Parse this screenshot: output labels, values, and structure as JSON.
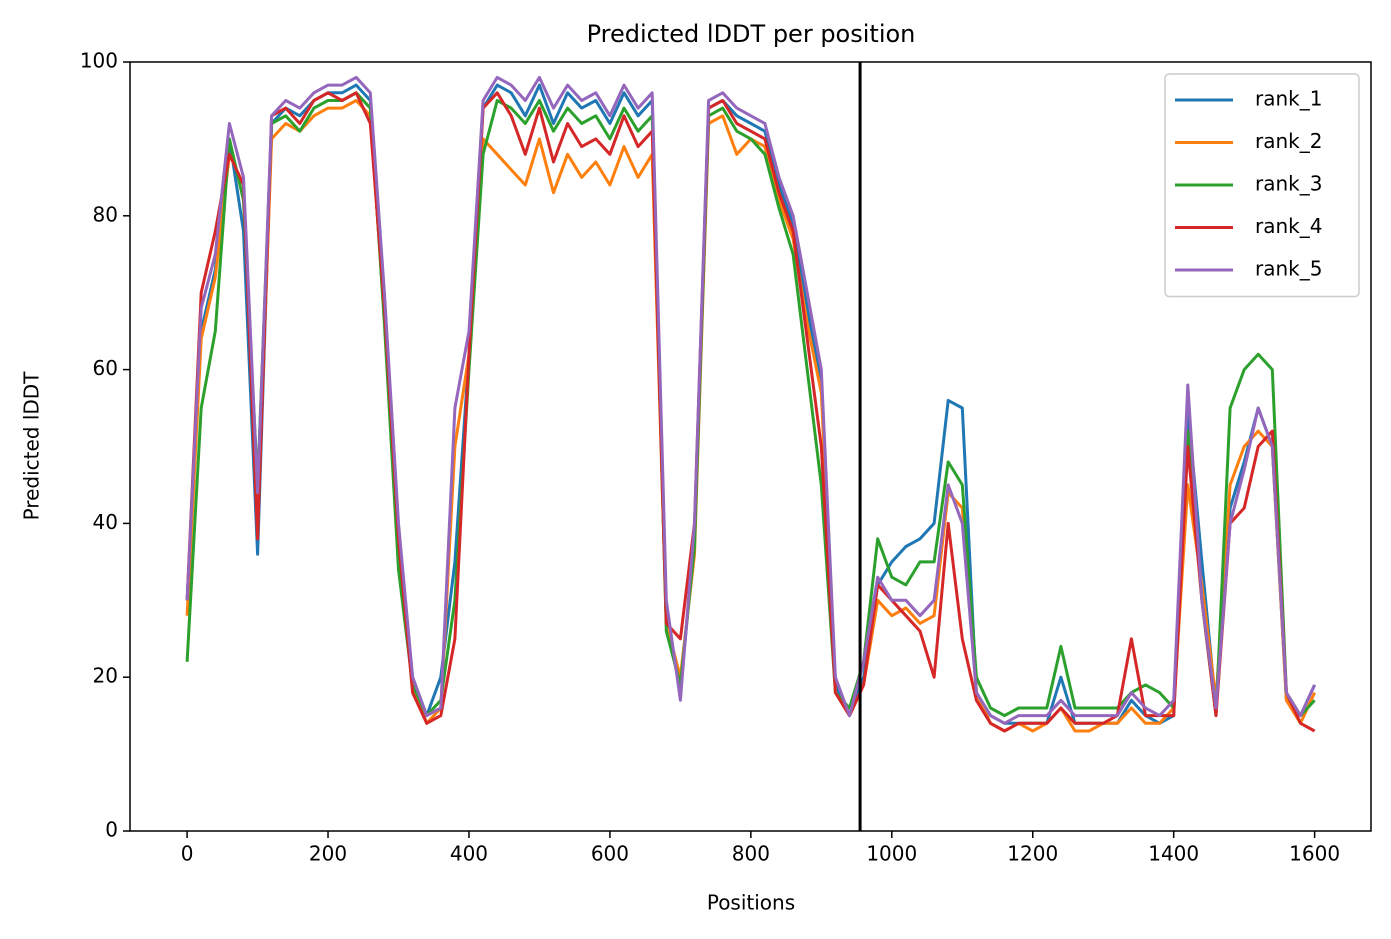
{
  "chart_data": {
    "type": "line",
    "title": "Predicted lDDT per position",
    "xlabel": "Positions",
    "ylabel": "Predicted lDDT",
    "x": [
      0,
      20,
      40,
      60,
      80,
      100,
      120,
      140,
      160,
      180,
      200,
      220,
      240,
      260,
      280,
      300,
      320,
      340,
      360,
      380,
      400,
      420,
      440,
      460,
      480,
      500,
      520,
      540,
      560,
      580,
      600,
      620,
      640,
      660,
      680,
      700,
      720,
      740,
      760,
      780,
      800,
      820,
      840,
      860,
      880,
      900,
      920,
      940,
      960,
      980,
      1000,
      1020,
      1040,
      1060,
      1080,
      1100,
      1120,
      1140,
      1160,
      1180,
      1200,
      1220,
      1240,
      1260,
      1280,
      1300,
      1320,
      1340,
      1360,
      1380,
      1400,
      1420,
      1440,
      1460,
      1480,
      1500,
      1520,
      1540,
      1560,
      1580,
      1600
    ],
    "series": [
      {
        "name": "rank_1",
        "color": "#1f77b4",
        "values": [
          30,
          65,
          73,
          90,
          78,
          36,
          92,
          94,
          93,
          95,
          96,
          96,
          97,
          95,
          68,
          38,
          20,
          15,
          20,
          35,
          62,
          94,
          97,
          96,
          93,
          97,
          92,
          96,
          94,
          95,
          92,
          96,
          93,
          95,
          28,
          18,
          38,
          94,
          95,
          93,
          92,
          91,
          84,
          79,
          68,
          58,
          19,
          15,
          20,
          32,
          35,
          37,
          38,
          40,
          56,
          55,
          18,
          15,
          14,
          14,
          14,
          14,
          20,
          14,
          14,
          14,
          14,
          17,
          15,
          14,
          15,
          55,
          35,
          16,
          42,
          48,
          55,
          50,
          17,
          15,
          19
        ]
      },
      {
        "name": "rank_2",
        "color": "#ff7f0e",
        "values": [
          28,
          64,
          72,
          88,
          84,
          40,
          90,
          92,
          91,
          93,
          94,
          94,
          95,
          93,
          67,
          37,
          19,
          14,
          16,
          50,
          62,
          90,
          88,
          86,
          84,
          90,
          83,
          88,
          85,
          87,
          84,
          89,
          85,
          88,
          27,
          20,
          36,
          92,
          93,
          88,
          90,
          89,
          82,
          77,
          66,
          57,
          18,
          15,
          19,
          30,
          28,
          29,
          27,
          28,
          44,
          42,
          18,
          14,
          13,
          14,
          13,
          14,
          16,
          13,
          13,
          14,
          14,
          16,
          14,
          14,
          16,
          45,
          32,
          17,
          45,
          50,
          52,
          50,
          17,
          14,
          18
        ]
      },
      {
        "name": "rank_3",
        "color": "#2ca02c",
        "values": [
          22,
          55,
          65,
          90,
          82,
          45,
          92,
          93,
          91,
          94,
          95,
          95,
          96,
          94,
          66,
          34,
          19,
          15,
          17,
          30,
          60,
          88,
          95,
          94,
          92,
          95,
          91,
          94,
          92,
          93,
          90,
          94,
          91,
          93,
          26,
          19,
          37,
          93,
          94,
          91,
          90,
          88,
          81,
          75,
          60,
          45,
          18,
          16,
          22,
          38,
          33,
          32,
          35,
          35,
          48,
          45,
          20,
          16,
          15,
          16,
          16,
          16,
          24,
          16,
          16,
          16,
          16,
          18,
          19,
          18,
          16,
          52,
          30,
          15,
          55,
          60,
          62,
          60,
          18,
          15,
          17
        ]
      },
      {
        "name": "rank_4",
        "color": "#d62728",
        "values": [
          30,
          70,
          78,
          88,
          84,
          38,
          93,
          94,
          92,
          95,
          96,
          95,
          96,
          92,
          68,
          38,
          18,
          14,
          15,
          25,
          62,
          94,
          96,
          93,
          88,
          94,
          87,
          92,
          89,
          90,
          88,
          93,
          89,
          91,
          27,
          25,
          40,
          94,
          95,
          92,
          91,
          90,
          83,
          78,
          64,
          50,
          18,
          15,
          19,
          32,
          30,
          28,
          26,
          20,
          40,
          25,
          17,
          14,
          13,
          14,
          14,
          14,
          16,
          14,
          14,
          14,
          15,
          25,
          15,
          15,
          15,
          50,
          30,
          15,
          40,
          42,
          50,
          52,
          18,
          14,
          13
        ]
      },
      {
        "name": "rank_5",
        "color": "#9467bd",
        "values": [
          30,
          68,
          75,
          92,
          85,
          44,
          93,
          95,
          94,
          96,
          97,
          97,
          98,
          96,
          70,
          40,
          20,
          15,
          16,
          55,
          65,
          95,
          98,
          97,
          95,
          98,
          94,
          97,
          95,
          96,
          93,
          97,
          94,
          96,
          30,
          17,
          40,
          95,
          96,
          94,
          93,
          92,
          85,
          80,
          70,
          60,
          20,
          15,
          22,
          33,
          30,
          30,
          28,
          30,
          45,
          40,
          18,
          15,
          14,
          15,
          15,
          15,
          17,
          15,
          15,
          15,
          15,
          18,
          16,
          15,
          17,
          58,
          30,
          16,
          40,
          47,
          55,
          50,
          18,
          15,
          19
        ]
      }
    ],
    "vline": 955,
    "xlim": [
      -81,
      1680
    ],
    "xticks": [
      0,
      200,
      400,
      600,
      800,
      1000,
      1200,
      1400,
      1600
    ],
    "ylim": [
      0,
      100
    ],
    "yticks": [
      0,
      20,
      40,
      60,
      80,
      100
    ],
    "legend": "upper right"
  }
}
